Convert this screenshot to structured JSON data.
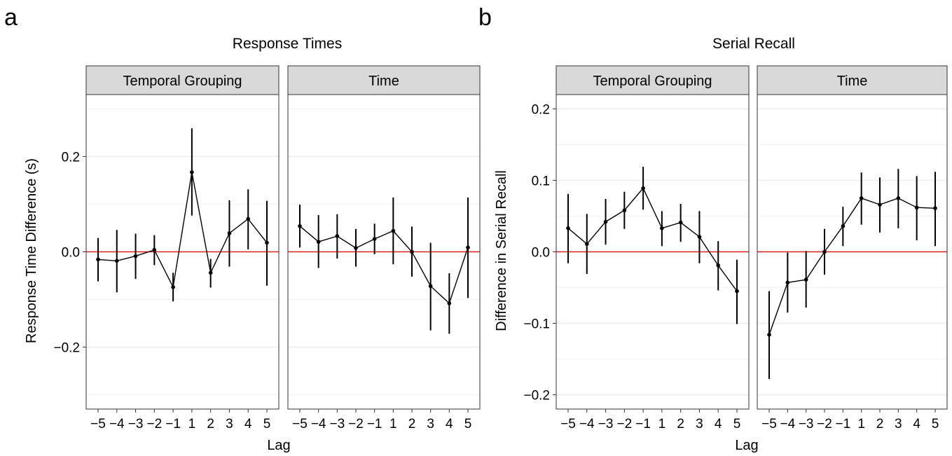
{
  "chart_data": [
    {
      "type": "line",
      "panel_letter": "a",
      "title": "Response Times",
      "xlabel": "Lag",
      "ylabel": "Response Time Difference (s)",
      "ylim": [
        -0.33,
        0.33
      ],
      "yticks": [
        -0.2,
        0.0,
        0.2
      ],
      "ytick_labels": [
        "−0.2",
        "0.0",
        "0.2"
      ],
      "categories": [
        -5,
        -4,
        -3,
        -2,
        -1,
        1,
        2,
        3,
        4,
        5
      ],
      "category_labels": [
        "−5",
        "−4",
        "−3",
        "−2",
        "−1",
        "1",
        "2",
        "3",
        "4",
        "5"
      ],
      "reference_line": 0,
      "grid": true,
      "facets": [
        {
          "label": "Temporal Grouping",
          "values": [
            -0.016,
            -0.019,
            -0.009,
            0.004,
            -0.074,
            0.167,
            -0.044,
            0.039,
            0.069,
            0.019
          ],
          "lower": [
            -0.062,
            -0.085,
            -0.057,
            -0.028,
            -0.104,
            0.076,
            -0.075,
            -0.031,
            0.005,
            -0.071
          ],
          "upper": [
            0.029,
            0.046,
            0.038,
            0.035,
            -0.044,
            0.259,
            -0.015,
            0.108,
            0.131,
            0.107
          ]
        },
        {
          "label": "Time",
          "values": [
            0.054,
            0.021,
            0.033,
            0.008,
            0.027,
            0.044,
            0.0,
            -0.072,
            -0.108,
            0.009
          ],
          "lower": [
            0.009,
            -0.034,
            -0.014,
            -0.031,
            -0.005,
            -0.026,
            -0.052,
            -0.165,
            -0.172,
            -0.097
          ],
          "upper": [
            0.099,
            0.077,
            0.079,
            0.048,
            0.059,
            0.114,
            0.053,
            0.019,
            -0.045,
            0.114
          ]
        }
      ]
    },
    {
      "type": "line",
      "panel_letter": "b",
      "title": "Serial Recall",
      "xlabel": "Lag",
      "ylabel": "Difference in Serial Recall",
      "ylim": [
        -0.22,
        0.22
      ],
      "yticks": [
        -0.2,
        -0.1,
        0.0,
        0.1,
        0.2
      ],
      "ytick_labels": [
        "−0.2",
        "−0.1",
        "0.0",
        "0.1",
        "0.2"
      ],
      "categories": [
        -5,
        -4,
        -3,
        -2,
        -1,
        1,
        2,
        3,
        4,
        5
      ],
      "category_labels": [
        "−5",
        "−4",
        "−3",
        "−2",
        "−1",
        "1",
        "2",
        "3",
        "4",
        "5"
      ],
      "reference_line": 0,
      "grid": true,
      "facets": [
        {
          "label": "Temporal Grouping",
          "values": [
            0.033,
            0.011,
            0.042,
            0.058,
            0.089,
            0.033,
            0.041,
            0.021,
            -0.019,
            -0.055
          ],
          "lower": [
            -0.016,
            -0.031,
            0.01,
            0.032,
            0.059,
            0.008,
            0.014,
            -0.016,
            -0.054,
            -0.101
          ],
          "upper": [
            0.081,
            0.053,
            0.074,
            0.084,
            0.119,
            0.057,
            0.067,
            0.057,
            0.015,
            -0.011
          ]
        },
        {
          "label": "Time",
          "values": [
            -0.116,
            -0.043,
            -0.039,
            0.0,
            0.036,
            0.075,
            0.066,
            0.075,
            0.062,
            0.061
          ],
          "lower": [
            -0.178,
            -0.085,
            -0.078,
            -0.032,
            0.008,
            0.038,
            0.027,
            0.033,
            0.016,
            0.008
          ],
          "upper": [
            -0.055,
            -0.001,
            0.001,
            0.032,
            0.063,
            0.111,
            0.104,
            0.116,
            0.106,
            0.112
          ]
        }
      ]
    }
  ]
}
